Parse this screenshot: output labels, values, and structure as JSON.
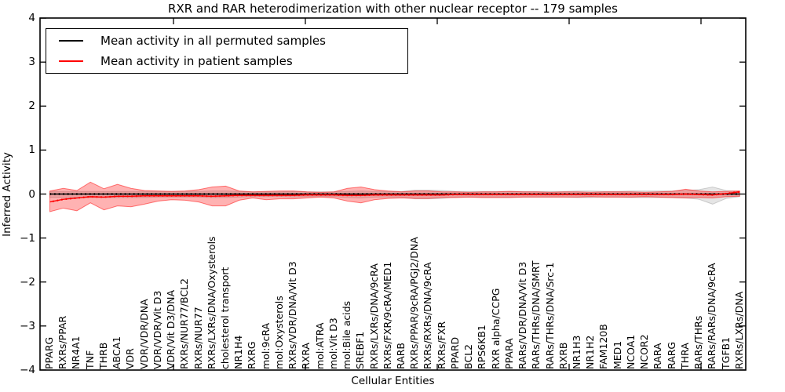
{
  "title": "RXR and RAR heterodimerization with other nuclear receptor -- 179 samples",
  "legend": {
    "items": [
      {
        "label": "Mean activity in all permuted samples",
        "color": "#000000"
      },
      {
        "label": "Mean activity in patient samples",
        "color": "#ff0000"
      }
    ]
  },
  "axes": {
    "ylabel": "Inferred Activity",
    "xlabel": "Cellular Entities",
    "yticks": [
      "4",
      "3",
      "2",
      "1",
      "0",
      "−1",
      "−2",
      "−3",
      "−4"
    ],
    "ylim": [
      -4,
      4
    ]
  },
  "colors": {
    "background": "#ffffff",
    "axis": "#000000"
  },
  "chart_data": {
    "type": "line",
    "title": "RXR and RAR heterodimerization with other nuclear receptor -- 179 samples",
    "xlabel": "Cellular Entities",
    "ylabel": "Inferred Activity",
    "ylim": [
      -4,
      4
    ],
    "grid": false,
    "legend_position": "upper left",
    "categories": [
      "PPARG",
      "RXRs/PPAR",
      "NR4A1",
      "TNF",
      "THRB",
      "ABCA1",
      "VDR",
      "VDR/VDR/DNA",
      "VDR/VDR/Vit D3",
      "VDR/Vit D3/DNA",
      "RXRs/NUR77/BCL2",
      "RXRs/NUR77",
      "RXRs/LXRs/DNA/Oxysterols",
      "cholesterol transport",
      "NR1H4",
      "RXRG",
      "mol:9cRA",
      "mol:Oxysterols",
      "RXRs/VDR/DNA/Vit D3",
      "RXRA",
      "mol:ATRA",
      "mol:Vit D3",
      "mol:Bile acids",
      "SREBF1",
      "RXRs/LXRs/DNA/9cRA",
      "RXRs/FXR/9cRA/MED1",
      "RARB",
      "RXRs/PPAR/9cRA/PGJ2/DNA",
      "RXRs/RXRs/DNA/9cRA",
      "RXRs/FXR",
      "PPARD",
      "BCL2",
      "RPS6KB1",
      "RXR alpha/CCPG",
      "PPARA",
      "RARs/VDR/DNA/Vit D3",
      "RARs/THRs/DNA/SMRT",
      "RARs/THRs/DNA/Src-1",
      "RXRB",
      "NR1H3",
      "NR1H2",
      "FAM120B",
      "MED1",
      "NCOA1",
      "NCOR2",
      "RARA",
      "RARG",
      "THRA",
      "RARs/THRs",
      "RARs/RARs/DNA/9cRA",
      "TGFB1",
      "RXRs/LXRs/DNA"
    ],
    "series": [
      {
        "name": "Mean activity in all permuted samples",
        "color": "#000000",
        "values": [
          0,
          0,
          0,
          0,
          0,
          0,
          0,
          0,
          0,
          0,
          0,
          0,
          0,
          0,
          0,
          0,
          0,
          0,
          0,
          0,
          0,
          0,
          0,
          0,
          0,
          0,
          0,
          0,
          0,
          0,
          0,
          0,
          0,
          0,
          0,
          0,
          0,
          0,
          0,
          0,
          0,
          0,
          0,
          0,
          0,
          0,
          0,
          0,
          0,
          0,
          0,
          0
        ]
      },
      {
        "name": "Mean activity in patient samples",
        "color": "#ff0000",
        "values": [
          -0.18,
          -0.12,
          -0.09,
          -0.06,
          -0.07,
          -0.05,
          -0.05,
          -0.04,
          -0.04,
          -0.04,
          -0.04,
          -0.04,
          -0.05,
          -0.04,
          -0.03,
          -0.03,
          -0.03,
          -0.03,
          -0.03,
          -0.02,
          -0.02,
          -0.02,
          -0.03,
          -0.03,
          -0.02,
          -0.02,
          -0.02,
          -0.02,
          -0.02,
          -0.02,
          -0.01,
          -0.01,
          -0.01,
          -0.01,
          -0.01,
          -0.01,
          -0.01,
          -0.01,
          -0.01,
          -0.01,
          -0.01,
          -0.01,
          -0.01,
          -0.01,
          -0.01,
          -0.01,
          -0.01,
          0.0,
          -0.01,
          -0.02,
          0.01,
          0.05
        ]
      }
    ],
    "bands": [
      {
        "name": "permuted samples range",
        "color": "#000000",
        "fill_opacity": 0.1,
        "stroke_opacity": 0.16,
        "upper": [
          0.06,
          0.06,
          0.06,
          0.06,
          0.06,
          0.06,
          0.06,
          0.06,
          0.06,
          0.06,
          0.06,
          0.06,
          0.07,
          0.07,
          0.06,
          0.05,
          0.05,
          0.05,
          0.06,
          0.05,
          0.05,
          0.05,
          0.06,
          0.07,
          0.06,
          0.06,
          0.06,
          0.09,
          0.09,
          0.08,
          0.06,
          0.06,
          0.06,
          0.06,
          0.06,
          0.06,
          0.06,
          0.06,
          0.06,
          0.07,
          0.07,
          0.06,
          0.06,
          0.07,
          0.07,
          0.07,
          0.07,
          0.08,
          0.1,
          0.16,
          0.08,
          0.06
        ],
        "lower": [
          -0.08,
          -0.08,
          -0.08,
          -0.08,
          -0.08,
          -0.08,
          -0.08,
          -0.08,
          -0.07,
          -0.07,
          -0.07,
          -0.07,
          -0.08,
          -0.08,
          -0.07,
          -0.06,
          -0.06,
          -0.06,
          -0.07,
          -0.06,
          -0.06,
          -0.06,
          -0.08,
          -0.09,
          -0.07,
          -0.07,
          -0.07,
          -0.11,
          -0.11,
          -0.1,
          -0.07,
          -0.07,
          -0.07,
          -0.07,
          -0.07,
          -0.07,
          -0.07,
          -0.07,
          -0.07,
          -0.08,
          -0.08,
          -0.07,
          -0.07,
          -0.08,
          -0.08,
          -0.08,
          -0.08,
          -0.09,
          -0.12,
          -0.23,
          -0.1,
          -0.06
        ]
      },
      {
        "name": "patient samples range",
        "color": "#ff0000",
        "fill_opacity": 0.3,
        "stroke_opacity": 0.5,
        "upper": [
          0.07,
          0.13,
          0.08,
          0.27,
          0.12,
          0.22,
          0.13,
          0.08,
          0.07,
          0.06,
          0.07,
          0.1,
          0.16,
          0.18,
          0.07,
          0.05,
          0.06,
          0.07,
          0.07,
          0.05,
          0.04,
          0.05,
          0.13,
          0.16,
          0.1,
          0.07,
          0.05,
          0.07,
          0.07,
          0.05,
          0.05,
          0.04,
          0.05,
          0.05,
          0.06,
          0.05,
          0.05,
          0.04,
          0.05,
          0.05,
          0.04,
          0.05,
          0.05,
          0.05,
          0.04,
          0.05,
          0.06,
          0.11,
          0.07,
          0.05,
          0.06,
          0.07
        ],
        "lower": [
          -0.4,
          -0.32,
          -0.38,
          -0.2,
          -0.36,
          -0.27,
          -0.29,
          -0.23,
          -0.16,
          -0.13,
          -0.14,
          -0.18,
          -0.27,
          -0.27,
          -0.14,
          -0.09,
          -0.13,
          -0.11,
          -0.11,
          -0.09,
          -0.07,
          -0.09,
          -0.16,
          -0.2,
          -0.13,
          -0.1,
          -0.09,
          -0.1,
          -0.1,
          -0.08,
          -0.08,
          -0.07,
          -0.08,
          -0.08,
          -0.08,
          -0.07,
          -0.07,
          -0.07,
          -0.07,
          -0.07,
          -0.06,
          -0.07,
          -0.07,
          -0.07,
          -0.06,
          -0.07,
          -0.08,
          -0.09,
          -0.08,
          -0.09,
          -0.06,
          -0.05
        ]
      }
    ]
  }
}
